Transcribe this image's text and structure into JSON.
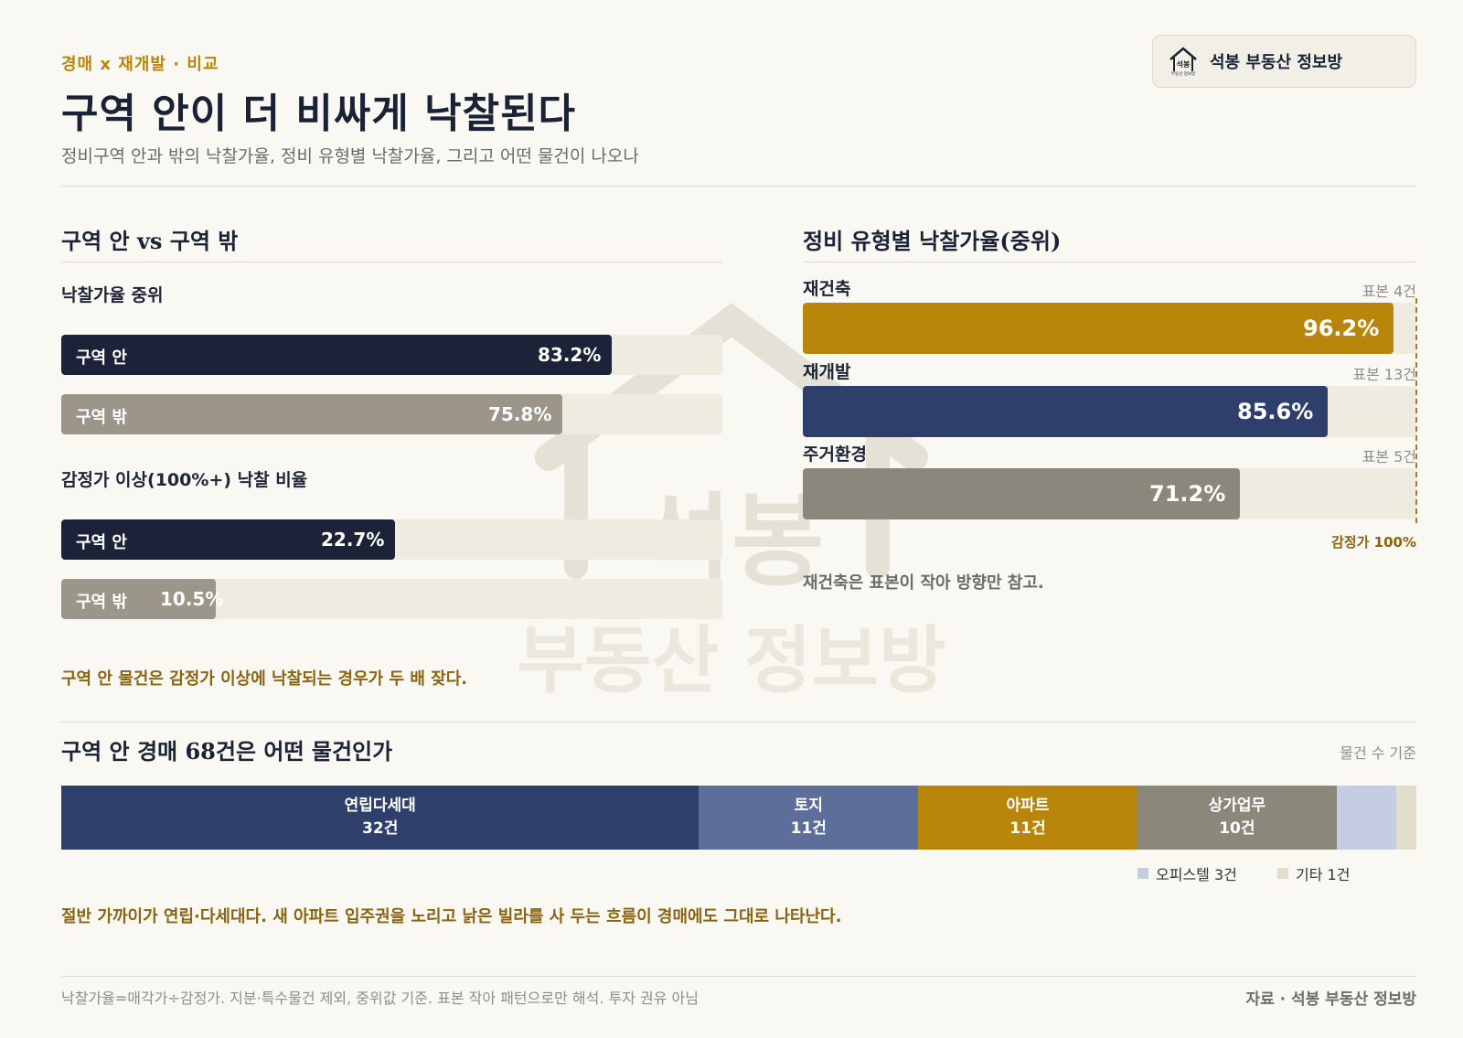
{
  "header": {
    "eyebrow": "경매 x 재개발 · 비교",
    "title": "구역 안이 더 비싸게 낙찰된다",
    "subtitle": "정비구역 안과 밖의 낙찰가율, 정비 유형별 낙찰가율, 그리고 어떤 물건이 나오나"
  },
  "brand": {
    "name": "석봉 부동산 정보방",
    "logo_text": "석봉",
    "logo_sub": "부동산 정보방",
    "watermark_top": "석봉",
    "watermark_bottom": "부동산 정보방"
  },
  "left": {
    "title": "구역 안 vs 구역 밖",
    "metric1_label": "낙찰가율 중위",
    "metric2_label": "감정가 이상(100%+) 낙찰 비율",
    "note": "구역 안 물건은 감정가 이상에 낙찰되는 경우가 두 배 잦다."
  },
  "right": {
    "title": "정비 유형별 낙찰가율(중위)",
    "ref_label": "감정가 100%",
    "note": "재건축은 표본이 작아 방향만 참고."
  },
  "bottom": {
    "title": "구역 안 경매 68건은 어떤 물건인가",
    "basis": "물건 수 기준",
    "note": "절반 가까이가 연립·다세대다. 새 아파트 입주권을 노리고 낡은 빌라를 사 두는 흐름이 경매에도 그대로 나타난다."
  },
  "footer": {
    "left": "낙찰가율=매각가÷감정가. 지분·특수물건 제외, 중위값 기준. 표본 작아 패턴으로만 해석. 투자 권유 아님",
    "right": "자료 · 석봉 부동산 정보방"
  },
  "colors": {
    "navy": "#1c2338",
    "taupe": "#9b958a",
    "gold": "#b8860b",
    "blue": "#2f3f6b",
    "grey": "#8a877c",
    "slate": "#5c6e99",
    "taupe2": "#8b887b",
    "lavender": "#c5cde2",
    "beige": "#e3ddcd"
  },
  "chart_data": [
    {
      "type": "bar",
      "title": "낙찰가율 중위",
      "categories": [
        "구역 안",
        "구역 밖"
      ],
      "values": [
        83.2,
        75.8
      ],
      "labels": [
        "83.2%",
        "75.8%"
      ],
      "xlim": [
        0,
        100
      ]
    },
    {
      "type": "bar",
      "title": "감정가 이상(100%+) 낙찰 비율",
      "categories": [
        "구역 안",
        "구역 밖"
      ],
      "values": [
        22.7,
        10.5
      ],
      "labels": [
        "22.7%",
        "10.5%"
      ],
      "xlim": [
        0,
        45
      ]
    },
    {
      "type": "bar",
      "title": "정비 유형별 낙찰가율(중위)",
      "categories": [
        "재건축",
        "재개발",
        "주거환경"
      ],
      "values": [
        96.2,
        85.6,
        71.2
      ],
      "labels": [
        "96.2%",
        "85.6%",
        "71.2%"
      ],
      "samples": [
        "표본 4건",
        "표본 13건",
        "표본 5건"
      ],
      "reference": 100,
      "xlim": [
        0,
        100
      ]
    },
    {
      "type": "bar",
      "title": "구역 안 경매 68건은 어떤 물건인가",
      "categories": [
        "연립다세대",
        "토지",
        "아파트",
        "상가업무",
        "오피스텔",
        "기타"
      ],
      "values": [
        32,
        11,
        11,
        10,
        3,
        1
      ],
      "labels": [
        "32건",
        "11건",
        "11건",
        "10건",
        "3건",
        "1건"
      ],
      "legend": [
        "오피스텔 3건",
        "기타 1건"
      ]
    }
  ]
}
